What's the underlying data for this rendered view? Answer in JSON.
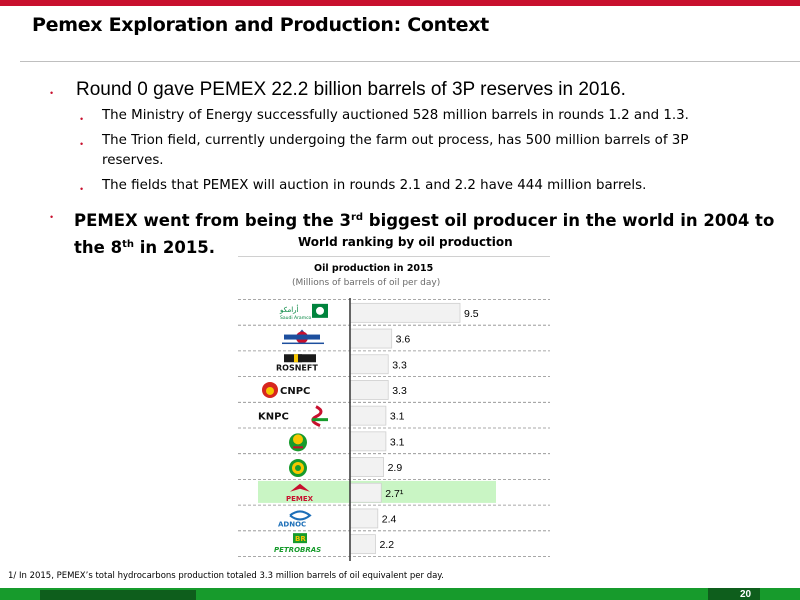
{
  "slide": {
    "title": "Pemex Exploration and Production: Context",
    "page_number": "20",
    "footnote": "1/ In 2015, PEMEX’s total hydrocarbons production totaled 3.3 million barrels of oil equivalent per day."
  },
  "bullets": {
    "main1": "Round 0 gave PEMEX 22.2 billion barrels of 3P reserves in 2016.",
    "sub1": "The Ministry of Energy successfully auctioned 528 million barrels in rounds 1.2 and 1.3.",
    "sub2": "The Trion field, currently undergoing the farm out process, has 500 million barrels of 3P reserves.",
    "sub3": "The fields that PEMEX will auction in rounds 2.1 and 2.2 have 444 million barrels.",
    "main2_part1": "PEMEX went from being the 3",
    "main2_sup1": "rd",
    "main2_part2": " biggest oil producer in the world in 2004 to the 8",
    "main2_sup2": "th",
    "main2_part3": " in 2015."
  },
  "colors": {
    "accent_red": "#c8102e",
    "brand_green": "#179b2c",
    "highlight": "#c9f5c4"
  },
  "chart_data": {
    "type": "bar",
    "orientation": "horizontal",
    "title": "World ranking by oil production",
    "subtitle": "Oil production in 2015",
    "unit_label": "(Millions of barrels of oil per day)",
    "categories": [
      "saudi-aramco-logo",
      "nioc-logo",
      "rosneft-logo",
      "cnpc-logo",
      "knpc-logo",
      "inoc-logo",
      "nnpc-logo",
      "pemex-logo",
      "adnoc-logo",
      "petrobras-logo"
    ],
    "logo_text": [
      "Saudi Aramco",
      "",
      "ROSNEFT",
      "CNPC",
      "KNPC",
      "",
      "",
      "PEMEX",
      "ADNOC",
      "PETROBRAS"
    ],
    "values": [
      9.5,
      3.6,
      3.3,
      3.3,
      3.1,
      3.1,
      2.9,
      2.7,
      2.4,
      2.2
    ],
    "value_labels": [
      "9.5",
      "3.6",
      "3.3",
      "3.3",
      "3.1",
      "3.1",
      "2.9",
      "2.7¹",
      "2.4",
      "2.2"
    ],
    "highlight_index": 7,
    "xlim": [
      0,
      9.5
    ],
    "grid": true
  }
}
